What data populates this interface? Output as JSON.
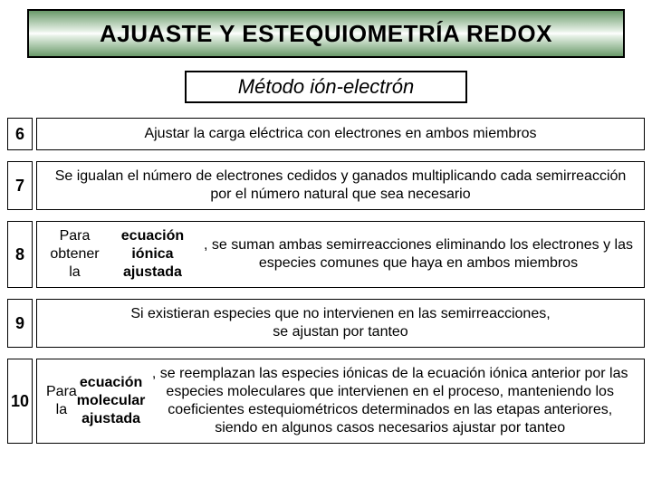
{
  "title": "AJUASTE Y ESTEQUIOMETRÍA REDOX",
  "subtitle": "Método ión-electrón",
  "colors": {
    "border": "#000000",
    "banner_gradient_dark": "#6a9a6a",
    "banner_gradient_light": "#e8f2e8",
    "background": "#ffffff",
    "text": "#000000"
  },
  "typography": {
    "title_fontsize": 26,
    "title_weight": "bold",
    "subtitle_fontsize": 22,
    "subtitle_style": "italic",
    "step_num_fontsize": 18,
    "step_num_weight": "bold",
    "step_desc_fontsize": 16
  },
  "steps": [
    {
      "num": "6",
      "html": "Ajustar la carga eléctrica con electrones en ambos miembros",
      "height_class": "h-36"
    },
    {
      "num": "7",
      "html": "Se igualan el número de electrones cedidos y ganados multiplicando cada semirreacción por el número natural que sea necesario",
      "height_class": "h-52"
    },
    {
      "num": "8",
      "html": "Para obtener la <span class=\"bold\">ecuación iónica ajustada</span>, se suman ambas semirreacciones eliminando los electrones y las especies comunes que haya en ambos miembros",
      "height_class": "h-56"
    },
    {
      "num": "9",
      "html": "Si existieran especies que no intervienen en las semirreacciones,<br>se ajustan por tanteo",
      "height_class": "h-52"
    },
    {
      "num": "10",
      "html": "Para la <span class=\"bold\">ecuación molecular ajustada</span>, se reemplazan las especies iónicas de la ecuación iónica anterior por las especies moleculares que intervienen en el proceso, manteniendo los coeficientes estequiométricos determinados en las etapas anteriores, siendo en algunos casos necesarios ajustar por tanteo",
      "height_class": "h-94"
    }
  ]
}
